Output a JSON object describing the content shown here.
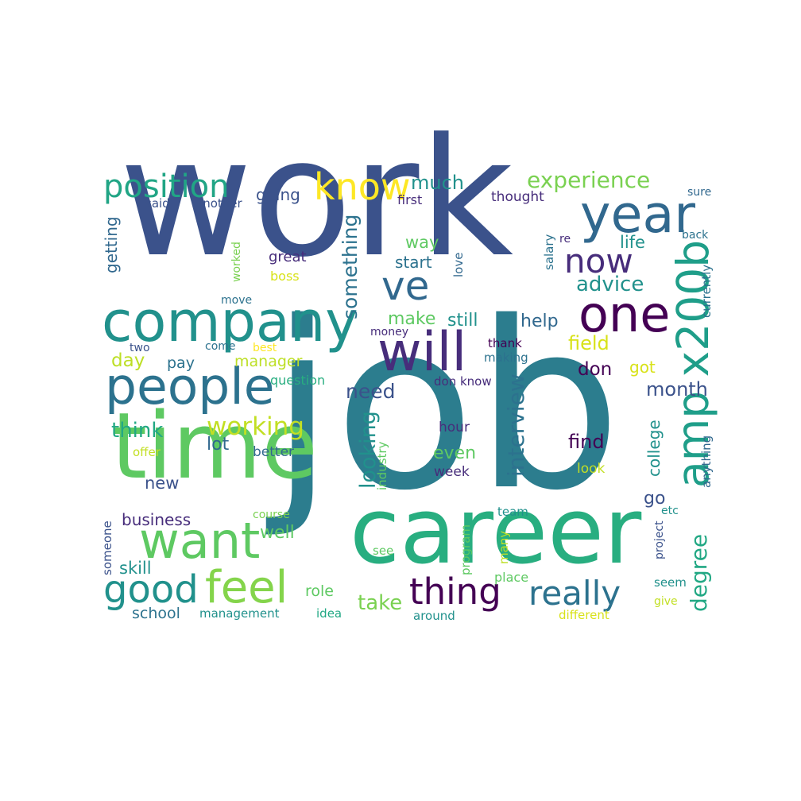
{
  "palette": {
    "purple_dark": "#440154",
    "purple": "#472d7b",
    "indigo": "#3b528b",
    "blue": "#2c728e",
    "teal": "#21918c",
    "green_teal": "#28ae80",
    "green": "#5ec962",
    "lime": "#addc30",
    "yellow": "#fde725"
  },
  "words": [
    {
      "text": "work",
      "color": "#3b528b"
    },
    {
      "text": "job",
      "color": "#2c7d8e"
    },
    {
      "text": "time",
      "color": "#5ec962"
    },
    {
      "text": "career",
      "color": "#28ae80"
    },
    {
      "text": "company",
      "color": "#21918c"
    },
    {
      "text": "people",
      "color": "#2c728e"
    },
    {
      "text": "year",
      "color": "#31688e"
    },
    {
      "text": "one",
      "color": "#440154"
    },
    {
      "text": "will",
      "color": "#472d7b"
    },
    {
      "text": "ve",
      "color": "#31688e"
    },
    {
      "text": "amp x200b",
      "color": "#1f9e89"
    },
    {
      "text": "want",
      "color": "#5ec962"
    },
    {
      "text": "know",
      "color": "#fde725"
    },
    {
      "text": "now",
      "color": "#472d7b"
    },
    {
      "text": "feel",
      "color": "#84d44b"
    },
    {
      "text": "good",
      "color": "#21918c"
    },
    {
      "text": "thing",
      "color": "#440154"
    },
    {
      "text": "really",
      "color": "#2c728e"
    },
    {
      "text": "position",
      "color": "#21a585"
    },
    {
      "text": "working",
      "color": "#c2df23"
    },
    {
      "text": "experience",
      "color": "#7ad151"
    },
    {
      "text": "interview",
      "color": "#2c728e"
    },
    {
      "text": "looking",
      "color": "#21918c"
    },
    {
      "text": "something",
      "color": "#2c728e"
    },
    {
      "text": "advice",
      "color": "#21918c"
    },
    {
      "text": "degree",
      "color": "#22a884"
    },
    {
      "text": "much",
      "color": "#21918c"
    },
    {
      "text": "need",
      "color": "#3b528b"
    },
    {
      "text": "month",
      "color": "#3b528b"
    },
    {
      "text": "think",
      "color": "#22a884"
    },
    {
      "text": "take",
      "color": "#7ad151"
    },
    {
      "text": "find",
      "color": "#440154"
    },
    {
      "text": "don",
      "color": "#440154"
    },
    {
      "text": "field",
      "color": "#d8e219"
    },
    {
      "text": "help",
      "color": "#31688e"
    },
    {
      "text": "make",
      "color": "#5ec962"
    },
    {
      "text": "still",
      "color": "#21918c"
    },
    {
      "text": "going",
      "color": "#3b528b"
    },
    {
      "text": "getting",
      "color": "#31688e"
    },
    {
      "text": "even",
      "color": "#5ec962"
    },
    {
      "text": "go",
      "color": "#3b528b"
    },
    {
      "text": "business",
      "color": "#472d7b"
    },
    {
      "text": "well",
      "color": "#5ec962"
    },
    {
      "text": "new",
      "color": "#3b528b"
    },
    {
      "text": "day",
      "color": "#bddf26"
    },
    {
      "text": "pay",
      "color": "#2c728e"
    },
    {
      "text": "manager",
      "color": "#bddf26"
    },
    {
      "text": "skill",
      "color": "#21918c"
    },
    {
      "text": "school",
      "color": "#2c728e"
    },
    {
      "text": "role",
      "color": "#5ec962"
    },
    {
      "text": "life",
      "color": "#21918c"
    },
    {
      "text": "way",
      "color": "#5ec962"
    },
    {
      "text": "start",
      "color": "#2c728e"
    },
    {
      "text": "got",
      "color": "#d8e219"
    },
    {
      "text": "college",
      "color": "#21918c"
    },
    {
      "text": "lot",
      "color": "#31688e"
    },
    {
      "text": "better",
      "color": "#31688e"
    },
    {
      "text": "great",
      "color": "#472d7b"
    },
    {
      "text": "first",
      "color": "#472d7b"
    },
    {
      "text": "thought",
      "color": "#472d7b"
    },
    {
      "text": "hour",
      "color": "#472d7b"
    },
    {
      "text": "week",
      "color": "#472d7b"
    },
    {
      "text": "look",
      "color": "#c2df23"
    },
    {
      "text": "industry",
      "color": "#5ec962"
    },
    {
      "text": "anything",
      "color": "#31688e"
    },
    {
      "text": "currently",
      "color": "#2c728e"
    },
    {
      "text": "salary",
      "color": "#2c728e"
    },
    {
      "text": "said",
      "color": "#3b528b"
    },
    {
      "text": "another",
      "color": "#3b528b"
    },
    {
      "text": "sure",
      "color": "#31688e"
    },
    {
      "text": "back",
      "color": "#2c728e"
    },
    {
      "text": "re",
      "color": "#472d7b"
    },
    {
      "text": "love",
      "color": "#31688e"
    },
    {
      "text": "boss",
      "color": "#d8e219"
    },
    {
      "text": "worked",
      "color": "#7ad151"
    },
    {
      "text": "move",
      "color": "#2c728e"
    },
    {
      "text": "two",
      "color": "#3b528b"
    },
    {
      "text": "come",
      "color": "#2c728e"
    },
    {
      "text": "best",
      "color": "#fde725"
    },
    {
      "text": "money",
      "color": "#472d7b"
    },
    {
      "text": "thank",
      "color": "#440154"
    },
    {
      "text": "making",
      "color": "#2c728e"
    },
    {
      "text": "question",
      "color": "#28ae80"
    },
    {
      "text": "don know",
      "color": "#472d7b"
    },
    {
      "text": "offer",
      "color": "#c2df23"
    },
    {
      "text": "course",
      "color": "#7ad151"
    },
    {
      "text": "team",
      "color": "#21918c"
    },
    {
      "text": "etc",
      "color": "#21918c"
    },
    {
      "text": "someone",
      "color": "#3b528b"
    },
    {
      "text": "program",
      "color": "#5ec962"
    },
    {
      "text": "many",
      "color": "#bddf26"
    },
    {
      "text": "see",
      "color": "#5ec962"
    },
    {
      "text": "place",
      "color": "#5ec962"
    },
    {
      "text": "project",
      "color": "#3b528b"
    },
    {
      "text": "seem",
      "color": "#21918c"
    },
    {
      "text": "give",
      "color": "#c2df23"
    },
    {
      "text": "management",
      "color": "#21918c"
    },
    {
      "text": "idea",
      "color": "#22a884"
    },
    {
      "text": "around",
      "color": "#21918c"
    },
    {
      "text": "different",
      "color": "#d8e219"
    }
  ]
}
